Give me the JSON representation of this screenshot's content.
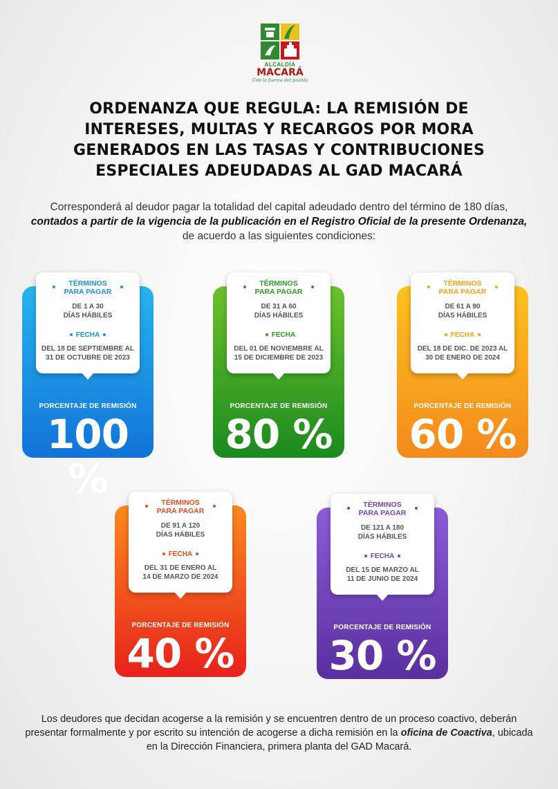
{
  "logo": {
    "line1": "ALCALDÍA",
    "line2": "MACARÁ",
    "slogan": "Con la fuerza del pueblo"
  },
  "title": "ORDENANZA QUE REGULA: LA REMISIÓN DE INTERESES, MULTAS Y RECARGOS POR MORA GENERADOS EN LAS TASAS Y CONTRIBUCIONES ESPECIALES ADEUDADAS AL GAD MACARÁ",
  "intro": {
    "part1": "Corresponderá al deudor pagar la totalidad del capital adeudado dentro del término de 180 días, ",
    "emphasis": "contados a partir de la vigencia de la publicación en el Registro Oficial de la presente Ordenanza,",
    "part2": " de acuerdo a las siguientes condiciones:"
  },
  "cards": [
    {
      "terms_label_1": "TÉRMINOS",
      "terms_label_2": "PARA PAGAR",
      "days_1": "DE 1 A 30",
      "days_2": "DÍAS HÁBILES",
      "date_label": "FECHA",
      "dates_1": "DEL 18 DE SEPTIEMBRE AL",
      "dates_2": "31 DE OCTUBRE DE 2023",
      "pct_label": "PORCENTAJE DE REMISIÓN",
      "pct": "100 %",
      "color": "#1694dd"
    },
    {
      "terms_label_1": "TÉRMINOS",
      "terms_label_2": "PARA PAGAR",
      "days_1": "DE 31 A 60",
      "days_2": "DÍAS HÁBILES",
      "date_label": "FECHA",
      "dates_1": "DEL 01 DE NOVIEMBRE AL",
      "dates_2": "15 DE DICIEMBRE DE 2023",
      "pct_label": "PORCENTAJE DE REMISIÓN",
      "pct": "80 %",
      "color": "#2e9a22"
    },
    {
      "terms_label_1": "TÉRMINOS",
      "terms_label_2": "PARA PAGAR",
      "days_1": "DE 61 A 90",
      "days_2": "DÍAS HÁBILES",
      "date_label": "FECHA",
      "dates_1": "DEL 18 DE DIC. DE 2023 AL",
      "dates_2": "30 DE ENERO DE 2024",
      "pct_label": "PORCENTAJE DE REMISIÓN",
      "pct": "60 %",
      "color": "#f5a31a"
    },
    {
      "terms_label_1": "TÉRMINOS",
      "terms_label_2": "PARA PAGAR",
      "days_1": "DE 91 A 120",
      "days_2": "DÍAS HÁBILES",
      "date_label": "FECHA",
      "dates_1": "DEL 31 DE ENERO AL",
      "dates_2": "14 DE MARZO DE 2024",
      "pct_label": "PORCENTAJE DE REMISIÓN",
      "pct": "40 %",
      "color": "#ec4d1d"
    },
    {
      "terms_label_1": "TÉRMINOS",
      "terms_label_2": "PARA PAGAR",
      "days_1": "DE 121 A 180",
      "days_2": "DÍAS HÁBILES",
      "date_label": "FECHA",
      "dates_1": "DEL 15 DE MARZO AL",
      "dates_2": "11 DE JUNIO DE 2024",
      "pct_label": "PORCENTAJE DE REMISIÓN",
      "pct": "30 %",
      "color": "#7243c0"
    }
  ],
  "footer": {
    "part1": "Los deudores que decidan acogerse a la remisión y se encuentren dentro de un proceso coactivo, deberán presentar formalmente y por escrito su intención de acogerse a dicha remisión en la ",
    "emphasis": "oficina de Coactiva",
    "part2": ", ubicada en la Dirección Financiera, primera planta del GAD Macará."
  },
  "icons": {
    "logo": "alcaldia-macara-emblem-icon"
  }
}
